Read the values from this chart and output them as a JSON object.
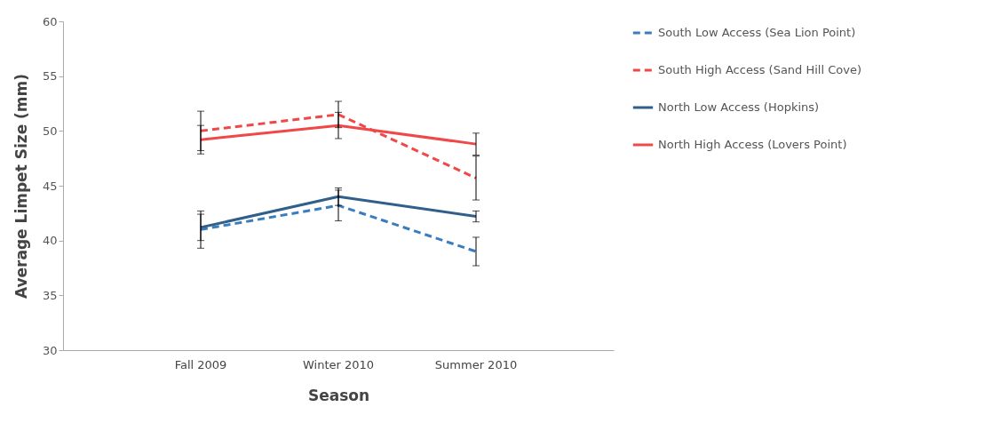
{
  "chart_data": {
    "type": "line",
    "xlabel": "Season",
    "ylabel": "Average Limpet Size (mm)",
    "categories": [
      "Fall 2009",
      "Winter 2010",
      "Summer 2010"
    ],
    "series": [
      {
        "name": "South Low Access (Sea Lion Point)",
        "color": "#3a7dbf",
        "line_style": "dashed",
        "values": [
          41,
          43.2,
          39
        ],
        "errors": [
          1.7,
          1.4,
          1.3
        ]
      },
      {
        "name": "South High Access (Sand Hill Cove)",
        "color": "#f04848",
        "line_style": "dashed",
        "values": [
          50,
          51.5,
          45.7
        ],
        "errors": [
          1.8,
          1.2,
          2
        ]
      },
      {
        "name": "North Low Access (Hopkins)",
        "color": "#2f5f8a",
        "line_style": "solid",
        "values": [
          41.2,
          44,
          42.2
        ],
        "errors": [
          1.2,
          0.8,
          0.5
        ]
      },
      {
        "name": "North High Access (Lovers Point)",
        "color": "#f04848",
        "line_style": "solid",
        "values": [
          49.2,
          50.5,
          48.8
        ],
        "errors": [
          1.3,
          1.2,
          1
        ]
      }
    ],
    "ylim": [
      30,
      60
    ],
    "yticks": [
      30,
      35,
      40,
      45,
      50,
      55,
      60
    ],
    "legend": "right",
    "grid": false,
    "marker": "none"
  }
}
